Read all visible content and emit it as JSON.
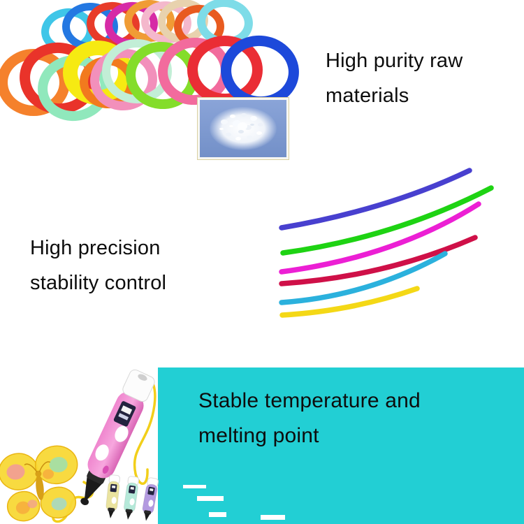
{
  "page": {
    "background": "#ffffff"
  },
  "features": [
    {
      "id": "raw-materials",
      "lines": [
        "High purity raw",
        "materials"
      ]
    },
    {
      "id": "stability",
      "lines": [
        "High precision",
        "stability control"
      ]
    },
    {
      "id": "temperature",
      "lines": [
        "Stable temperature and",
        "melting point"
      ]
    }
  ],
  "colors": {
    "text": "#0d0d0d",
    "teal_panel": "#22cfd4",
    "pellet_box": "#7d9bd2",
    "pen_pink": "#ef86ce",
    "pen_pink_dark": "#d965b5",
    "filament_wire": "#f2cf1a",
    "butterfly_yellow": "#f8d836",
    "butterfly_outline": "#eab512",
    "dash_white": "#ffffff"
  },
  "filament_coils": {
    "back_row": [
      "#3fc6e8",
      "#2478e2",
      "#e83c2a",
      "#d62ba6",
      "#f09c35",
      "#f4b8cc",
      "#e8d2ae",
      "#e85b20",
      "#7edce8"
    ],
    "front_row": [
      "#f5812c",
      "#e9332a",
      "#90e8bc",
      "#f6ea12",
      "#f27a1e",
      "#f290bb",
      "#c2eed6",
      "#84dd2a",
      "#f26b9d",
      "#ea2d35",
      "#1d49da"
    ]
  },
  "strands": {
    "colors": [
      "#4840cf",
      "#1ed313",
      "#ec1fd4",
      "#cf1048",
      "#2bb1dd",
      "#f4d816"
    ]
  },
  "mini_pens": [
    "#eae39f",
    "#b5e9d9",
    "#b39ae0"
  ],
  "butterfly_patches": [
    "#f08fa8",
    "#8fe0c0",
    "#f6a23c",
    "#8fd8e8"
  ]
}
